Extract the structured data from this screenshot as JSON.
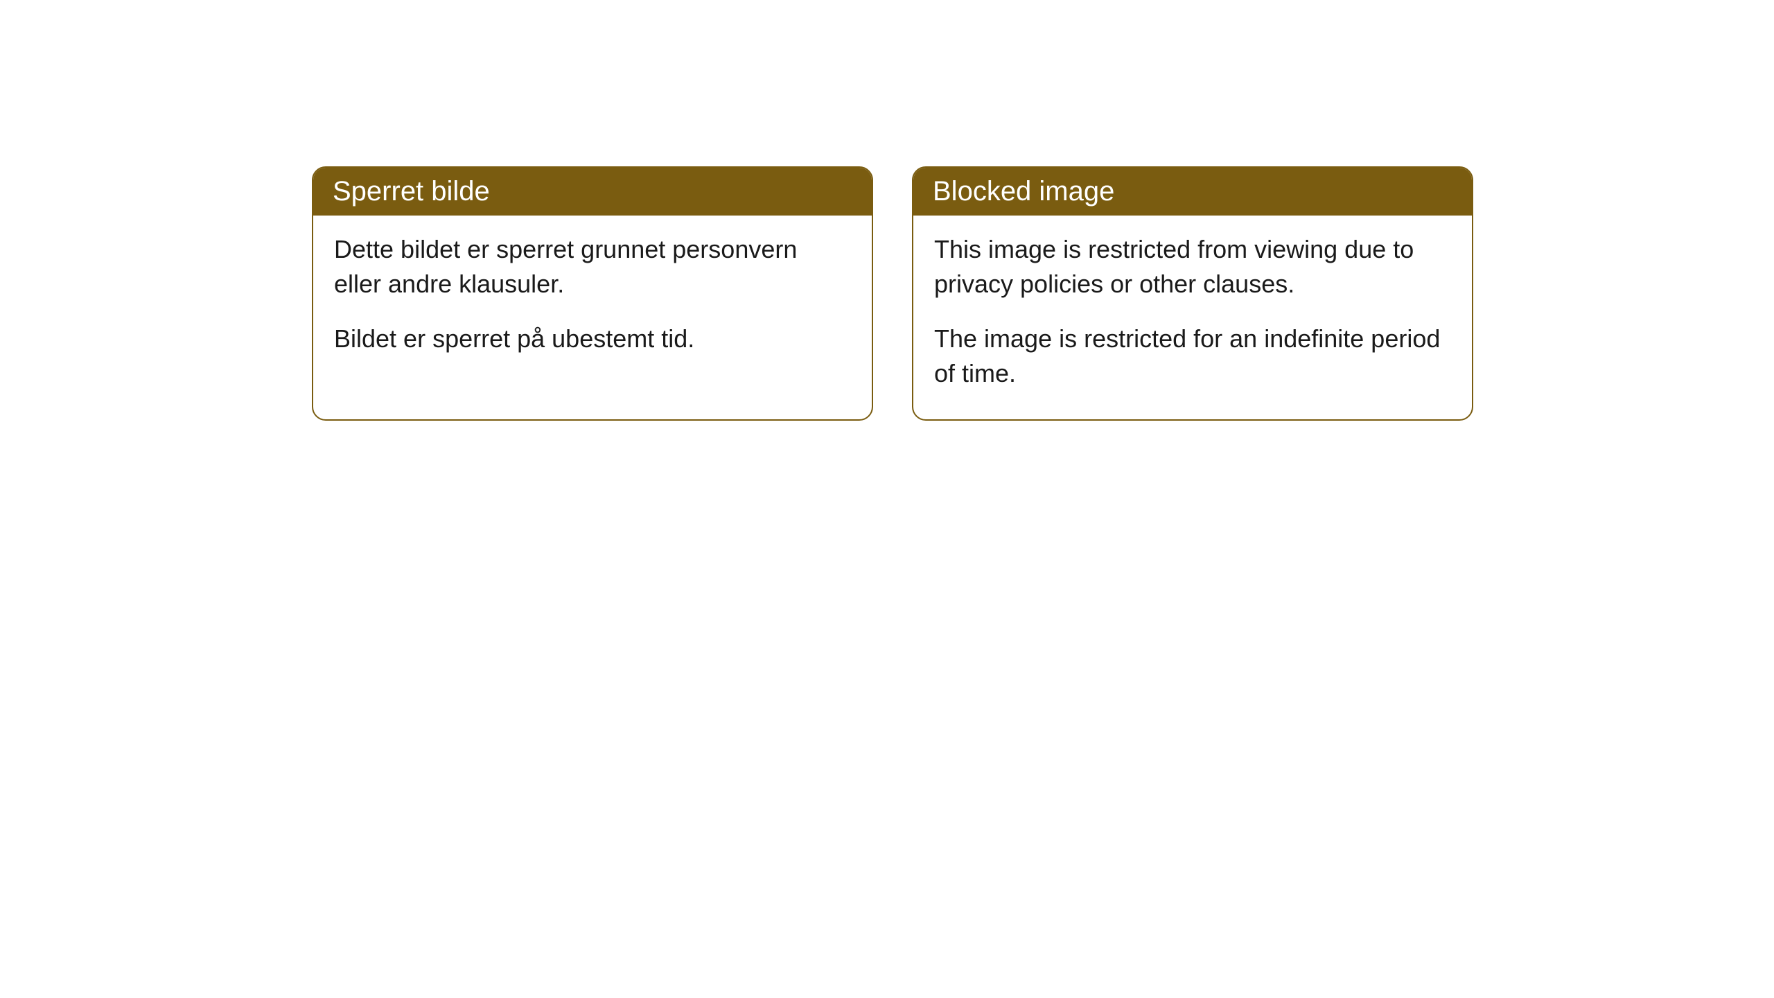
{
  "cards": [
    {
      "title": "Sperret bilde",
      "para1": "Dette bildet er sperret grunnet personvern eller andre klausuler.",
      "para2": "Bildet er sperret på ubestemt tid."
    },
    {
      "title": "Blocked image",
      "para1": "This image is restricted from viewing due to privacy policies or other clauses.",
      "para2": "The image is restricted for an indefinite period of time."
    }
  ],
  "style": {
    "header_bg": "#7a5c10",
    "header_text_color": "#ffffff",
    "border_color": "#7a5c10",
    "body_text_color": "#1a1a1a",
    "body_bg": "#ffffff",
    "border_radius": 20,
    "title_fontsize": 40,
    "body_fontsize": 36
  }
}
